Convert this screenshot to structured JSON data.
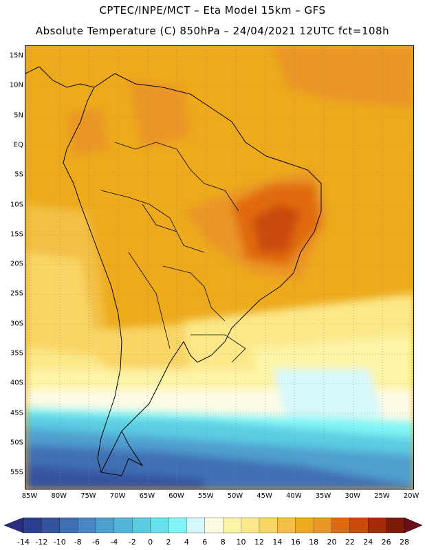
{
  "header": {
    "line1": "CPTEC/INPE/MCT –  Eta Model 15km – GFS",
    "line2": "Absolute Temperature (C) 850hPa – 24/04/2021 12UTC fct=108h"
  },
  "map": {
    "lat_labels": [
      "15N",
      "10N",
      "5N",
      "EQ",
      "5S",
      "10S",
      "15S",
      "20S",
      "25S",
      "30S",
      "35S",
      "40S",
      "45S",
      "50S",
      "55S"
    ],
    "lon_labels": [
      "85W",
      "80W",
      "75W",
      "70W",
      "65W",
      "60W",
      "55W",
      "50W",
      "45W",
      "40W",
      "35W",
      "30W",
      "25W",
      "20W"
    ]
  },
  "colorbar": {
    "labels": [
      "-14",
      "-12",
      "-10",
      "-8",
      "-6",
      "-4",
      "-2",
      "0",
      "2",
      "4",
      "6",
      "8",
      "10",
      "12",
      "14",
      "16",
      "18",
      "20",
      "22",
      "24",
      "26",
      "28"
    ],
    "colors": [
      "#2c3f8f",
      "#34539f",
      "#3f6fb3",
      "#4a86c3",
      "#4f9fcf",
      "#53b6d9",
      "#5bcde2",
      "#66e0ec",
      "#80f5f5",
      "#d6f8fb",
      "#fdfbe4",
      "#fdf4a6",
      "#fce889",
      "#f9d566",
      "#f3bf44",
      "#edaa1c",
      "#ea9625",
      "#e06a10",
      "#ca4a0a",
      "#a52a06",
      "#7d1a06"
    ],
    "low_arrow_color": "#2a2e7e",
    "high_arrow_color": "#6a0f1c"
  }
}
